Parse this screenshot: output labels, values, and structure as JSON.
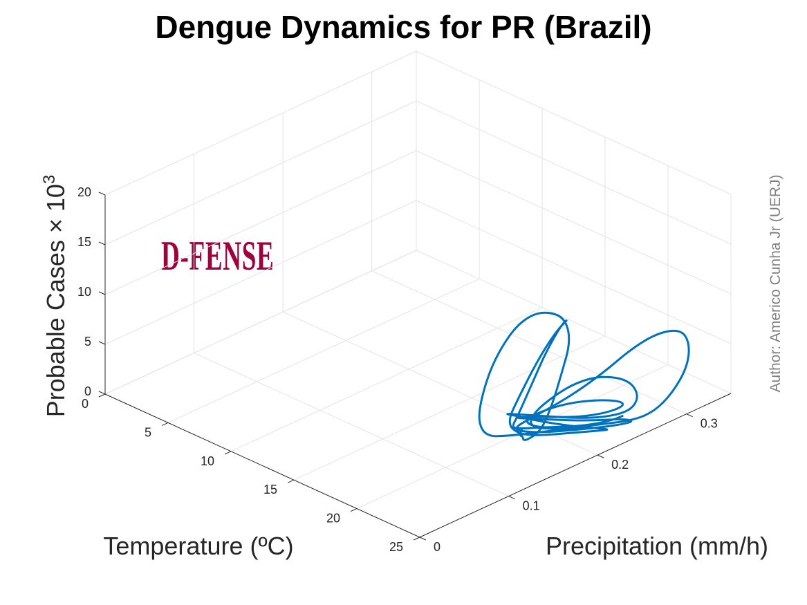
{
  "chart_data": {
    "type": "line",
    "projection": "3d",
    "title": "Dengue Dynamics for PR (Brazil)",
    "xlabel": "Temperature (ºC)",
    "ylabel": "Precipitation (mm/h)",
    "zlabel_main": "Probable Cases × 10",
    "zlabel_exp": "3",
    "annotation": "Author: Americo Cunha Jr (UERJ)",
    "logo_text": "D-FENSE",
    "xlim": [
      0,
      25
    ],
    "ylim": [
      0,
      0.35
    ],
    "zlim": [
      0,
      20
    ],
    "x_ticks": [
      0,
      5,
      10,
      15,
      20,
      25
    ],
    "y_ticks": [
      0,
      0.1,
      0.2,
      0.3
    ],
    "z_ticks": [
      0,
      5,
      10,
      15,
      20
    ],
    "x_tick_labels": [
      "0",
      "5",
      "10",
      "15",
      "20",
      "25"
    ],
    "y_tick_labels": [
      "0",
      "0.1",
      "0.2",
      "0.3"
    ],
    "z_tick_labels": [
      "0",
      "5",
      "10",
      "15",
      "20"
    ],
    "grid": true,
    "series": [
      {
        "color": "#0072BD",
        "points": [
          [
            19.7,
            0.19,
            0.0
          ],
          [
            20.2,
            0.18,
            0.0
          ],
          [
            20.6,
            0.178,
            0.3
          ],
          [
            20.9,
            0.175,
            0.0
          ],
          [
            21.2,
            0.19,
            0.6
          ],
          [
            21.4,
            0.2,
            3.0
          ],
          [
            21.6,
            0.208,
            6.0
          ],
          [
            21.8,
            0.215,
            9.0
          ],
          [
            21.7,
            0.21,
            11.5
          ],
          [
            21.3,
            0.195,
            12.5
          ],
          [
            20.8,
            0.183,
            12.3
          ],
          [
            20.3,
            0.17,
            11.0
          ],
          [
            19.8,
            0.155,
            8.0
          ],
          [
            19.4,
            0.148,
            4.5
          ],
          [
            19.2,
            0.148,
            2.0
          ],
          [
            19.4,
            0.155,
            0.5
          ],
          [
            20.0,
            0.17,
            0.3
          ],
          [
            20.9,
            0.19,
            0.3
          ],
          [
            21.8,
            0.21,
            0.4
          ],
          [
            22.4,
            0.222,
            0.4
          ],
          [
            22.5,
            0.228,
            0.3
          ],
          [
            22.0,
            0.222,
            0.3
          ],
          [
            21.0,
            0.205,
            0.3
          ],
          [
            20.0,
            0.185,
            0.4
          ],
          [
            19.7,
            0.178,
            0.6
          ],
          [
            20.1,
            0.18,
            2.0
          ],
          [
            20.5,
            0.19,
            5.0
          ],
          [
            20.9,
            0.2,
            8.0
          ],
          [
            21.3,
            0.212,
            10.5
          ],
          [
            21.5,
            0.217,
            11.0
          ],
          [
            21.2,
            0.208,
            10.0
          ],
          [
            20.7,
            0.195,
            7.5
          ],
          [
            20.2,
            0.18,
            4.0
          ],
          [
            19.9,
            0.17,
            1.5
          ],
          [
            20.3,
            0.178,
            0.3
          ],
          [
            21.0,
            0.192,
            0.0
          ],
          [
            22.0,
            0.212,
            0.0
          ],
          [
            22.8,
            0.228,
            0.0
          ],
          [
            23.3,
            0.238,
            0.0
          ],
          [
            23.0,
            0.232,
            0.2
          ],
          [
            22.0,
            0.21,
            0.8
          ],
          [
            20.9,
            0.19,
            1.5
          ],
          [
            20.0,
            0.178,
            2.0
          ],
          [
            19.6,
            0.172,
            2.2
          ],
          [
            19.9,
            0.18,
            2.0
          ],
          [
            20.8,
            0.2,
            1.5
          ],
          [
            21.9,
            0.222,
            1.0
          ],
          [
            22.9,
            0.242,
            0.9
          ],
          [
            23.5,
            0.26,
            1.2
          ],
          [
            23.5,
            0.268,
            2.4
          ],
          [
            23.0,
            0.263,
            3.8
          ],
          [
            22.2,
            0.245,
            4.5
          ],
          [
            21.4,
            0.228,
            4.1
          ],
          [
            20.7,
            0.212,
            3.0
          ],
          [
            20.2,
            0.195,
            1.6
          ],
          [
            20.3,
            0.19,
            0.5
          ],
          [
            21.2,
            0.21,
            0.0
          ],
          [
            22.5,
            0.24,
            0.0
          ],
          [
            23.5,
            0.262,
            0.1
          ],
          [
            24.0,
            0.278,
            0.6
          ],
          [
            24.2,
            0.295,
            1.8
          ],
          [
            24.0,
            0.315,
            3.5
          ],
          [
            23.5,
            0.325,
            5.2
          ],
          [
            22.8,
            0.325,
            6.2
          ],
          [
            22.0,
            0.31,
            6.0
          ],
          [
            21.3,
            0.29,
            4.8
          ],
          [
            20.8,
            0.265,
            3.1
          ],
          [
            20.3,
            0.235,
            1.7
          ],
          [
            19.9,
            0.2,
            0.9
          ],
          [
            19.8,
            0.18,
            0.6
          ],
          [
            20.1,
            0.182,
            0.3
          ],
          [
            20.9,
            0.198,
            0.0
          ],
          [
            22.0,
            0.22,
            0.0
          ],
          [
            23.0,
            0.242,
            0.0
          ],
          [
            23.6,
            0.262,
            0.0
          ],
          [
            23.0,
            0.258,
            0.1
          ],
          [
            22.0,
            0.232,
            0.4
          ],
          [
            20.9,
            0.205,
            1.0
          ],
          [
            20.2,
            0.188,
            1.4
          ],
          [
            19.8,
            0.18,
            1.6
          ],
          [
            20.2,
            0.19,
            1.5
          ],
          [
            21.0,
            0.205,
            1.3
          ],
          [
            22.0,
            0.222,
            1.2
          ],
          [
            22.8,
            0.24,
            1.3
          ],
          [
            23.2,
            0.255,
            1.6
          ],
          [
            23.0,
            0.255,
            2.0
          ],
          [
            22.2,
            0.24,
            2.3
          ],
          [
            21.2,
            0.22,
            2.2
          ],
          [
            20.4,
            0.2,
            1.7
          ],
          [
            20.0,
            0.188,
            1.0
          ],
          [
            20.5,
            0.195,
            0.4
          ],
          [
            21.5,
            0.212,
            0.3
          ],
          [
            22.5,
            0.23,
            0.4
          ],
          [
            23.1,
            0.245,
            0.6
          ],
          [
            23.3,
            0.252,
            0.8
          ]
        ]
      }
    ]
  }
}
